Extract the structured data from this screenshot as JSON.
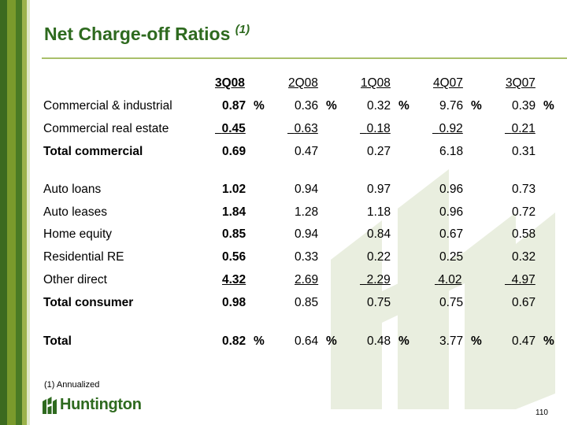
{
  "slide": {
    "title": "Net Charge-off Ratios",
    "title_superscript": "(1)",
    "footnote": "(1)  Annualized",
    "page_number": "110",
    "logo_text": "Huntington"
  },
  "table": {
    "columns": [
      "3Q08",
      "2Q08",
      "1Q08",
      "4Q07",
      "3Q07"
    ],
    "rows": [
      {
        "label": "Commercial & industrial",
        "values": [
          "0.87",
          "0.36",
          "0.32",
          "9.76",
          "0.39"
        ],
        "pct": [
          "%",
          "%",
          "%",
          "%",
          "%"
        ]
      },
      {
        "label": "Commercial real estate",
        "values": [
          "0.45",
          "0.63",
          "0.18",
          "0.92",
          "0.21"
        ]
      },
      {
        "label": "Total commercial",
        "values": [
          "0.69",
          "0.47",
          "0.27",
          "6.18",
          "0.31"
        ]
      },
      {
        "label": "Auto loans",
        "values": [
          "1.02",
          "0.94",
          "0.97",
          "0.96",
          "0.73"
        ]
      },
      {
        "label": "Auto leases",
        "values": [
          "1.84",
          "1.28",
          "1.18",
          "0.96",
          "0.72"
        ]
      },
      {
        "label": "Home equity",
        "values": [
          "0.85",
          "0.94",
          "0.84",
          "0.67",
          "0.58"
        ]
      },
      {
        "label": "Residential RE",
        "values": [
          "0.56",
          "0.33",
          "0.22",
          "0.25",
          "0.32"
        ]
      },
      {
        "label": "Other direct",
        "values": [
          "4.32",
          "2.69",
          "2.29",
          "4.02",
          "4.97"
        ]
      },
      {
        "label": "Total consumer",
        "values": [
          "0.98",
          "0.85",
          "0.75",
          "0.75",
          "0.67"
        ]
      },
      {
        "label": "Total",
        "values": [
          "0.82",
          "0.64",
          "0.48",
          "3.77",
          "0.47"
        ],
        "pct": [
          "%",
          "%",
          "%",
          "%",
          "%"
        ]
      }
    ]
  },
  "colors": {
    "title": "#2e6a1f",
    "stripe_dark": "#3c6a1f",
    "stripe_mid": "#7a9a2c",
    "watermark": "#e9eedf"
  },
  "icons": {
    "logo": "huntington-logo-icon",
    "watermark": "huntington-watermark-icon"
  }
}
